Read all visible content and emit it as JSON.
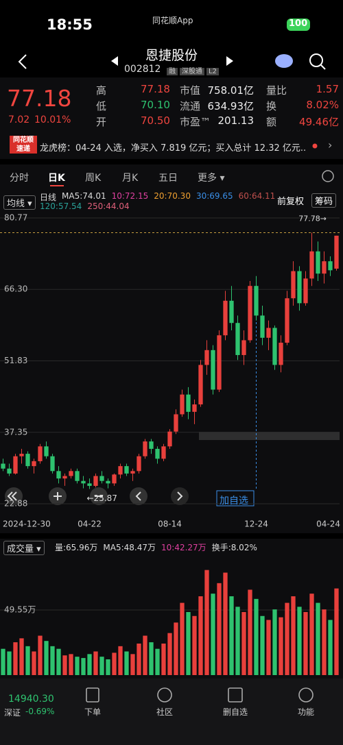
{
  "status_bar": {
    "time": "18:55",
    "app": "同花顺App",
    "battery": "100"
  },
  "header": {
    "name": "恩捷股份",
    "code": "002812",
    "tags": [
      "融",
      "深股通",
      "L2"
    ]
  },
  "quote": {
    "price": "77.18",
    "change": "7.02",
    "change_pct": "10.01%",
    "stats": [
      [
        {
          "label": "高",
          "value": "77.18"
        },
        {
          "label": "市值",
          "value": "758.01亿"
        },
        {
          "label": "量比",
          "value": "1.57"
        }
      ],
      [
        {
          "label": "低",
          "value": "70.10"
        },
        {
          "label": "流通",
          "value": "634.93亿"
        },
        {
          "label": "换",
          "value": "8.02%"
        }
      ],
      [
        {
          "label": "开",
          "value": "70.50"
        },
        {
          "label": "市盈™",
          "value": "201.13"
        },
        {
          "label": "额",
          "value": "49.46亿"
        }
      ]
    ]
  },
  "news": {
    "logo": [
      "同花顺",
      "速递"
    ],
    "text": "龙虎榜：04-24 入选，净买入 7.819 亿元；买入总计 12.32 亿元..."
  },
  "tabs": {
    "items": [
      "分时",
      "日K",
      "周K",
      "月K",
      "五日",
      "更多"
    ],
    "active": 1
  },
  "indicator": {
    "selector": "均线",
    "legend": [
      {
        "text": "日线",
        "color": "#dddddd"
      },
      {
        "text": "MA5:74.01",
        "color": "#dddddd"
      },
      {
        "text": "10:72.15",
        "color": "#e040a0"
      },
      {
        "text": "20:70.30",
        "color": "#f0a030"
      },
      {
        "text": "30:69.65",
        "color": "#3a8fe8"
      },
      {
        "text": "60:64.11",
        "color": "#c0504d"
      },
      {
        "text": "120:57.54",
        "color": "#2aa198"
      },
      {
        "text": "250:44.04",
        "color": "#e0607a"
      }
    ],
    "right": [
      "前复权",
      "筹码"
    ]
  },
  "volume_header": {
    "selector": "成交量",
    "legend": [
      {
        "text": "量:65.96万",
        "color": "#dddddd"
      },
      {
        "text": "MA5:48.47万",
        "color": "#dddddd"
      },
      {
        "text": "10:42.27万",
        "color": "#e040a0"
      },
      {
        "text": "换手:8.02%",
        "color": "#dddddd"
      }
    ]
  },
  "controls": {
    "add_watch": "加自选"
  },
  "chart_data": [
    {
      "type": "candlestick",
      "up_color": "#e8403c",
      "down_color": "#2ec26f",
      "categories": [
        "2024-12-30",
        null,
        null,
        null,
        null,
        null,
        null,
        null,
        null,
        null,
        null,
        null,
        null,
        null,
        "04-22",
        null,
        null,
        null,
        null,
        null,
        null,
        null,
        null,
        null,
        null,
        null,
        null,
        "08-14",
        null,
        null,
        null,
        null,
        null,
        null,
        null,
        null,
        null,
        null,
        null,
        null,
        null,
        "12-24",
        null,
        null,
        null,
        null,
        null,
        null,
        null,
        null,
        null,
        null,
        null,
        null,
        "04-24"
      ],
      "open": [
        31,
        30,
        29,
        32.5,
        33,
        30.5,
        31.5,
        34.5,
        32.5,
        29.5,
        28,
        28.5,
        29.5,
        27.5,
        27,
        26.5,
        28.5,
        27.5,
        27,
        28.8,
        30.5,
        29,
        29.5,
        32.5,
        35.5,
        34,
        32,
        34.5,
        37.5,
        41,
        45,
        41.5,
        43,
        51,
        54,
        46,
        57,
        64,
        59.5,
        53,
        56,
        67,
        61,
        56.5,
        58.5,
        51,
        55.5,
        64.5,
        70,
        63.5,
        68.5,
        74,
        69.5,
        72,
        70.5
      ],
      "high": [
        32,
        31,
        33,
        34,
        33.5,
        32,
        35,
        35.5,
        33,
        30.5,
        29,
        30,
        30,
        28.5,
        28,
        29,
        29.5,
        28,
        29,
        31,
        31,
        30,
        33,
        36,
        36,
        34.5,
        35,
        38,
        42,
        46,
        46.5,
        44,
        52,
        56,
        55,
        58,
        66,
        67,
        61,
        58,
        68,
        69,
        63,
        60,
        59,
        57,
        66,
        72,
        71,
        70,
        77.78,
        76,
        74,
        73,
        77.18
      ],
      "low": [
        29.5,
        28.5,
        28.8,
        31,
        30,
        29,
        31,
        32,
        29,
        27,
        26.5,
        28,
        27,
        26,
        25.87,
        26.2,
        27,
        26,
        26.5,
        28,
        28.5,
        27.5,
        29,
        32,
        33,
        31,
        31.5,
        34,
        37,
        40.5,
        40,
        39,
        42.5,
        49,
        45,
        45.5,
        56,
        58,
        52,
        51,
        55.5,
        60,
        55,
        54,
        50,
        49.5,
        55,
        63,
        62,
        63,
        67,
        68,
        67.5,
        69,
        70.1
      ],
      "close": [
        30,
        29,
        32.5,
        33,
        30.5,
        31.5,
        34.5,
        32.5,
        29.5,
        28,
        28.5,
        29.5,
        27.5,
        27,
        26.5,
        28.5,
        27.5,
        27,
        28.8,
        30.5,
        29,
        29.5,
        32.5,
        35.5,
        34,
        32,
        34.5,
        37.5,
        41,
        45,
        41.5,
        43,
        51,
        54,
        46,
        57,
        64,
        59.5,
        53,
        56,
        67,
        61,
        56.5,
        58.5,
        51,
        55.5,
        64.5,
        70,
        63.5,
        68.5,
        74,
        69.5,
        72,
        70.17,
        77.18
      ],
      "ylim": [
        22.88,
        80.77
      ],
      "yticks": [
        80.77,
        {
          "value": 66.3,
          "label": "66.30"
        },
        51.83,
        37.35,
        22.88
      ],
      "annotations": [
        {
          "text": "77.78→",
          "value": 77.78
        },
        {
          "text": "←25.87",
          "value": 25.87
        }
      ]
    },
    {
      "type": "bar",
      "values": [
        20,
        18,
        25,
        28,
        22,
        18,
        30,
        26,
        22,
        20,
        15,
        16,
        14,
        13,
        16,
        18,
        14,
        12,
        17,
        22,
        18,
        16,
        24,
        30,
        25,
        20,
        24,
        32,
        40,
        55,
        48,
        45,
        60,
        80,
        62,
        70,
        78,
        60,
        52,
        48,
        65,
        58,
        45,
        42,
        50,
        44,
        55,
        60,
        52,
        48,
        62,
        55,
        50,
        42,
        65.96
      ],
      "ylim": [
        0,
        88.7
      ],
      "yticks": [
        {
          "value": 49.55,
          "label": "49.55万"
        }
      ]
    }
  ],
  "bottom": {
    "index_value": "14940.30",
    "index_name": "深证",
    "index_change": "-0.69%",
    "nav": [
      "下单",
      "社区",
      "删自选",
      "功能"
    ]
  }
}
